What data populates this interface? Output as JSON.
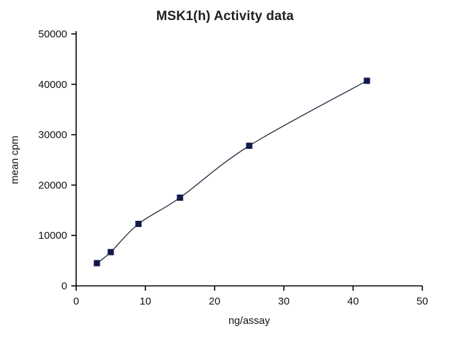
{
  "chart_data": {
    "type": "line",
    "title": "MSK1(h) Activity data",
    "xlabel": "ng/assay",
    "ylabel": "mean cpm",
    "x": [
      3,
      5,
      9,
      15,
      25,
      42
    ],
    "y": [
      4500,
      6700,
      12300,
      17500,
      27800,
      40700
    ],
    "xlim": [
      0,
      50
    ],
    "ylim": [
      0,
      50000
    ],
    "xticks": [
      0,
      10,
      20,
      30,
      40,
      50
    ],
    "yticks": [
      0,
      10000,
      20000,
      30000,
      40000,
      50000
    ],
    "grid": false,
    "legend_position": "none",
    "line_color": "#2e3146",
    "marker": "square",
    "marker_color": "#131b4b",
    "axis_color": "#000000",
    "smoothed_line": true
  }
}
